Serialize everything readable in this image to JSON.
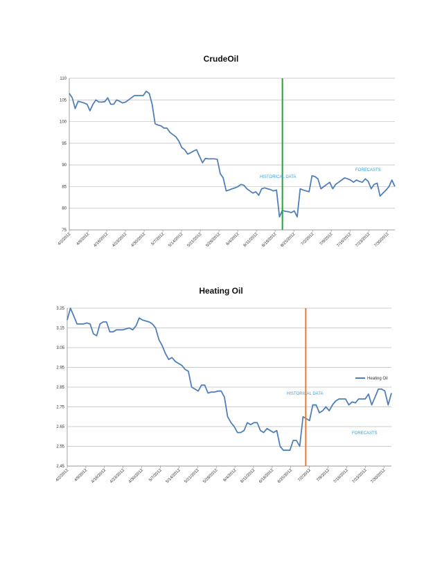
{
  "chart_data": [
    {
      "type": "line",
      "title": "CrudeOil",
      "ylim": [
        75,
        110
      ],
      "yticks": [
        "75",
        "80",
        "85",
        "90",
        "95",
        "100",
        "105",
        "110"
      ],
      "x_tick_labels": [
        "4/2/2012",
        "4/9/2012",
        "4/16/2012",
        "4/23/2012",
        "4/30/2012",
        "5/7/2012",
        "5/14/2012",
        "5/21/2012",
        "5/28/2012",
        "6/4/2012",
        "6/11/2012",
        "6/18/2012",
        "6/25/2012",
        "7/2/2012",
        "7/9/2012",
        "7/16/2012",
        "7/23/2012",
        "7/30/2012"
      ],
      "grid": true,
      "legend": "none",
      "annotations": [
        "HISTORICAL DATA",
        "FORECASTS"
      ],
      "divider_after_index": 72,
      "series": [
        {
          "color": "#4f7fb8",
          "values": [
            106.5,
            105.5,
            103,
            104.7,
            104.5,
            104.3,
            104,
            102.5,
            104,
            105,
            104.5,
            104.5,
            104.6,
            105.5,
            104,
            104,
            105,
            104.7,
            104.3,
            104.5,
            105,
            105.5,
            106,
            106,
            106,
            106,
            107,
            106.5,
            104,
            99.5,
            99.2,
            99,
            98.5,
            98.5,
            97.5,
            97,
            96.5,
            95.5,
            94,
            93.5,
            92.5,
            92.8,
            93.2,
            93.5,
            92,
            90.5,
            91.5,
            91.4,
            91.4,
            91.4,
            91.3,
            88,
            87,
            84,
            84.2,
            84.5,
            84.7,
            85,
            85.5,
            85.3,
            84.5,
            84,
            83.5,
            83.8,
            83,
            84.5,
            84.7,
            84.5,
            84.3,
            84,
            84.2,
            78,
            79.5,
            79.3,
            79.2,
            79,
            79.4,
            78,
            84.5,
            84.2,
            84,
            83.8,
            87.5,
            87.3,
            86.8,
            84.5,
            85,
            85.5,
            86,
            84.5,
            85.5,
            86,
            86.5,
            87,
            86.8,
            86.5,
            86,
            86.5,
            86.2,
            86,
            86.8,
            86.2,
            84.5,
            85.5,
            85.8,
            82.8,
            83.5,
            84.2,
            85,
            86.5,
            85
          ]
        }
      ]
    },
    {
      "type": "line",
      "title": "Heating Oil",
      "ylim": [
        2.45,
        3.25
      ],
      "yticks": [
        "2.45",
        "2.55",
        "2.65",
        "2.75",
        "2.85",
        "2.95",
        "3.05",
        "3.15",
        "3.25"
      ],
      "x_tick_labels": [
        "4/2/2012",
        "4/9/2012",
        "4/16/2012",
        "4/23/2012",
        "4/30/2012",
        "5/7/2012",
        "5/14/2012",
        "5/21/2012",
        "5/28/2012",
        "6/4/2012",
        "6/11/2012",
        "6/18/2012",
        "6/25/2012",
        "7/2/2012",
        "7/9/2012",
        "7/16/2012",
        "7/23/2012",
        "7/30/2012"
      ],
      "grid": true,
      "legend": "right",
      "annotations": [
        "HISTORICAL DATA",
        "FORECASTS"
      ],
      "divider_after_index": 72,
      "series": [
        {
          "name": "Heating Oil",
          "color": "#4f7fb8",
          "values": [
            3.19,
            3.25,
            3.21,
            3.17,
            3.17,
            3.17,
            3.175,
            3.17,
            3.12,
            3.11,
            3.17,
            3.18,
            3.18,
            3.13,
            3.13,
            3.14,
            3.14,
            3.14,
            3.145,
            3.15,
            3.14,
            3.16,
            3.2,
            3.19,
            3.185,
            3.18,
            3.17,
            3.15,
            3.09,
            3.06,
            3.02,
            2.99,
            3.0,
            2.98,
            2.97,
            2.96,
            2.94,
            2.93,
            2.85,
            2.84,
            2.83,
            2.86,
            2.86,
            2.82,
            2.825,
            2.825,
            2.83,
            2.83,
            2.8,
            2.7,
            2.67,
            2.65,
            2.62,
            2.62,
            2.63,
            2.67,
            2.66,
            2.67,
            2.67,
            2.63,
            2.62,
            2.64,
            2.63,
            2.62,
            2.63,
            2.55,
            2.53,
            2.53,
            2.53,
            2.58,
            2.58,
            2.55,
            2.7,
            2.69,
            2.68,
            2.76,
            2.76,
            2.72,
            2.73,
            2.75,
            2.73,
            2.76,
            2.78,
            2.79,
            2.79,
            2.79,
            2.76,
            2.775,
            2.77,
            2.79,
            2.79,
            2.79,
            2.815,
            2.76,
            2.8,
            2.84,
            2.84,
            2.83,
            2.76,
            2.82
          ]
        }
      ]
    }
  ]
}
